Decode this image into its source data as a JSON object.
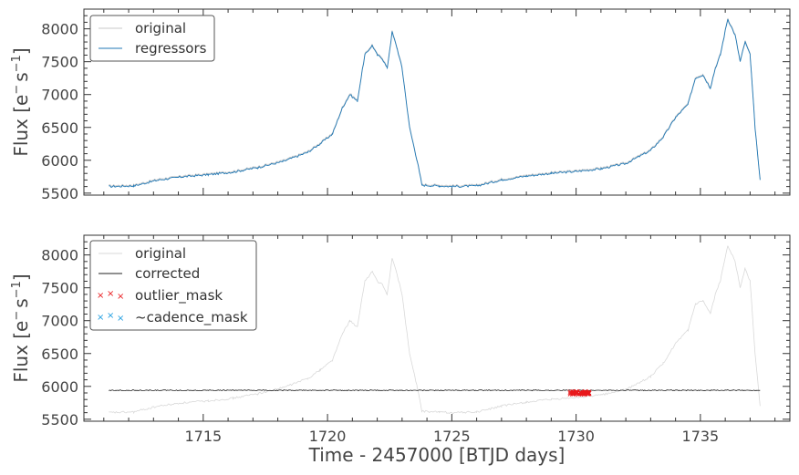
{
  "chart_data": [
    {
      "type": "line",
      "ylabel_main": "Flux [e",
      "ylabel_exp1": "−",
      "ylabel_mid": "s",
      "ylabel_exp2": "−1",
      "ylabel_end": "]",
      "xlim": [
        1710.2,
        1738.6
      ],
      "ylim": [
        5470,
        8300
      ],
      "x_ticks": [
        1715,
        1720,
        1725,
        1730,
        1735
      ],
      "y_ticks": [
        5500,
        6000,
        6500,
        7000,
        7500,
        8000
      ],
      "legend": {
        "position": "upper-left",
        "entries": [
          "original",
          "regressors"
        ]
      },
      "colors": {
        "original": "#c8c8c8",
        "regressors": "#1f77b4"
      },
      "series": [
        {
          "name": "original",
          "x": [
            1711.2,
            1712.2,
            1713.2,
            1714.2,
            1715.2,
            1716.2,
            1717.2,
            1718.2,
            1719.2,
            1719.7,
            1720.2,
            1720.6,
            1720.9,
            1721.2,
            1721.5,
            1721.8,
            1722.0,
            1722.2,
            1722.4,
            1722.6,
            1722.8,
            1723.0,
            1723.3,
            1723.6,
            1723.8,
            1724.5,
            1725.0,
            1726.0,
            1727.0,
            1728.0,
            1729.0,
            1730.0,
            1731.0,
            1732.0,
            1733.0,
            1733.5,
            1734.0,
            1734.5,
            1734.8,
            1735.1,
            1735.4,
            1735.6,
            1735.8,
            1736.1,
            1736.4,
            1736.6,
            1736.8,
            1737.0,
            1737.2,
            1737.4
          ],
          "y": [
            5600,
            5610,
            5700,
            5750,
            5780,
            5820,
            5890,
            5980,
            6120,
            6250,
            6400,
            6800,
            7000,
            6900,
            7600,
            7750,
            7600,
            7550,
            7400,
            7950,
            7700,
            7400,
            6500,
            6000,
            5620,
            5610,
            5600,
            5610,
            5700,
            5760,
            5800,
            5830,
            5870,
            5950,
            6150,
            6350,
            6650,
            6850,
            7250,
            7300,
            7100,
            7400,
            7600,
            8150,
            7900,
            7500,
            7800,
            7600,
            6500,
            5700
          ]
        },
        {
          "name": "regressors",
          "x": [
            1711.2,
            1712.2,
            1713.2,
            1714.2,
            1715.2,
            1716.2,
            1717.2,
            1718.2,
            1719.2,
            1719.7,
            1720.2,
            1720.6,
            1720.9,
            1721.2,
            1721.5,
            1721.8,
            1722.0,
            1722.2,
            1722.4,
            1722.6,
            1722.8,
            1723.0,
            1723.3,
            1723.6,
            1723.8,
            1724.5,
            1725.0,
            1726.0,
            1727.0,
            1728.0,
            1729.0,
            1730.0,
            1731.0,
            1732.0,
            1733.0,
            1733.5,
            1734.0,
            1734.5,
            1734.8,
            1735.1,
            1735.4,
            1735.6,
            1735.8,
            1736.1,
            1736.4,
            1736.6,
            1736.8,
            1737.0,
            1737.2,
            1737.4
          ],
          "y": [
            5600,
            5610,
            5700,
            5750,
            5780,
            5820,
            5890,
            5980,
            6120,
            6250,
            6400,
            6800,
            7000,
            6900,
            7600,
            7750,
            7600,
            7550,
            7400,
            7950,
            7700,
            7400,
            6500,
            6000,
            5620,
            5610,
            5600,
            5610,
            5700,
            5760,
            5800,
            5830,
            5870,
            5950,
            6150,
            6350,
            6650,
            6850,
            7250,
            7300,
            7100,
            7400,
            7600,
            8150,
            7900,
            7500,
            7800,
            7600,
            6500,
            5700
          ]
        }
      ]
    },
    {
      "type": "line",
      "xlabel": "Time - 2457000 [BTJD days]",
      "ylabel_main": "Flux [e",
      "ylabel_exp1": "−",
      "ylabel_mid": "s",
      "ylabel_exp2": "−1",
      "ylabel_end": "]",
      "xlim": [
        1710.2,
        1738.6
      ],
      "ylim": [
        5470,
        8300
      ],
      "x_ticks": [
        1715,
        1720,
        1725,
        1730,
        1735
      ],
      "y_ticks": [
        5500,
        6000,
        6500,
        7000,
        7500,
        8000
      ],
      "legend": {
        "position": "upper-left",
        "entries": [
          "original",
          "corrected",
          "outlier_mask",
          "~cadence_mask"
        ]
      },
      "colors": {
        "original": "#d9d9d9",
        "corrected": "#222222",
        "outlier_mask": "#e8191c",
        "cadence_mask": "#1f9de0"
      },
      "series": [
        {
          "name": "original",
          "ref": "same as top panel"
        },
        {
          "name": "corrected",
          "x": [
            1711.2,
            1737.4
          ],
          "y": [
            5940,
            5940
          ]
        },
        {
          "name": "outlier_mask",
          "x": [
            1729.8,
            1729.9,
            1730.0,
            1730.1,
            1730.2,
            1730.3,
            1730.4,
            1730.5
          ],
          "y": [
            5900,
            5890,
            5895,
            5885,
            5892,
            5898,
            5905,
            5910
          ]
        },
        {
          "name": "~cadence_mask",
          "x": [],
          "y": []
        }
      ]
    }
  ]
}
